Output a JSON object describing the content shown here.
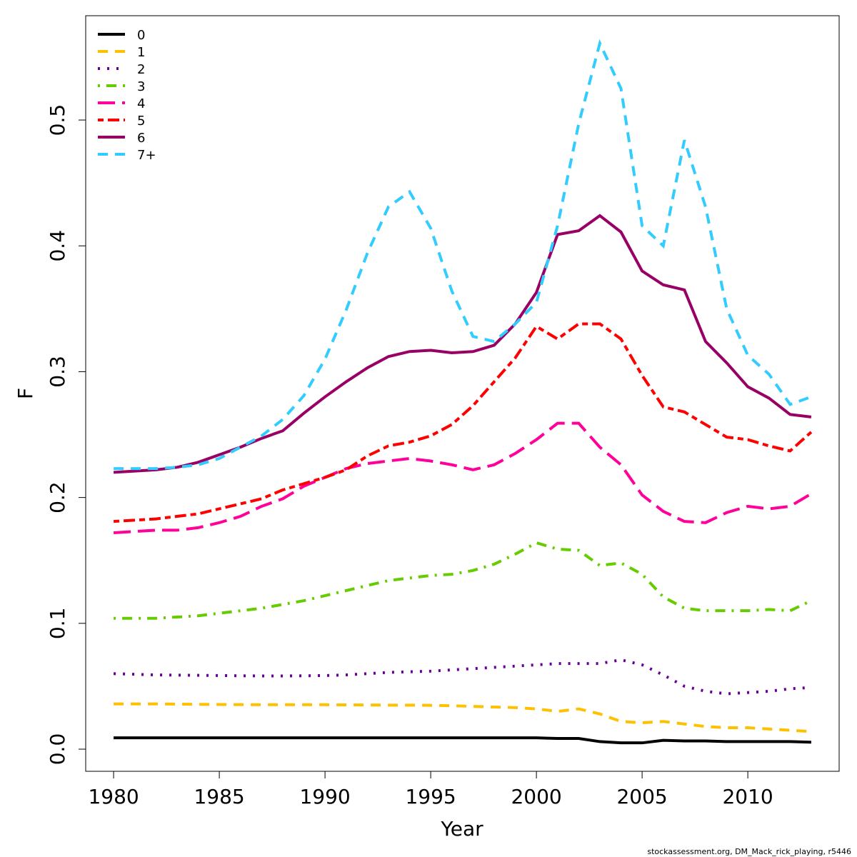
{
  "chart_data": {
    "type": "line",
    "x_label": "Year",
    "y_label": "F",
    "footer": "stockassessment.org, DM_Mack_rick_playing, r5446",
    "x": [
      1980,
      1981,
      1982,
      1983,
      1984,
      1985,
      1986,
      1987,
      1988,
      1989,
      1990,
      1991,
      1992,
      1993,
      1994,
      1995,
      1996,
      1997,
      1998,
      1999,
      2000,
      2001,
      2002,
      2003,
      2004,
      2005,
      2006,
      2007,
      2008,
      2009,
      2010,
      2011,
      2012,
      2013
    ],
    "xlim": [
      1978.68,
      2014.32
    ],
    "xticks": [
      1980,
      1985,
      1990,
      1995,
      2000,
      2005,
      2010
    ],
    "ylim": [
      -0.0176,
      0.5829
    ],
    "yticks": [
      {
        "value": 0,
        "label": "0.0"
      },
      0.1,
      0.2,
      0.3,
      0.4,
      0.5
    ],
    "legend": "top-left",
    "grid": false,
    "series": [
      {
        "name": "0",
        "color": "#000000",
        "dash": "solid",
        "values": [
          0.009,
          0.009,
          0.009,
          0.009,
          0.009,
          0.009,
          0.009,
          0.009,
          0.009,
          0.009,
          0.009,
          0.009,
          0.009,
          0.009,
          0.009,
          0.009,
          0.009,
          0.009,
          0.009,
          0.009,
          0.009,
          0.0085,
          0.0085,
          0.006,
          0.005,
          0.005,
          0.007,
          0.0065,
          0.0065,
          0.006,
          0.006,
          0.006,
          0.006,
          0.0055
        ]
      },
      {
        "name": "1",
        "color": "#FFC000",
        "dash": "dashed",
        "values": [
          0.036,
          0.036,
          0.036,
          0.0358,
          0.0356,
          0.0355,
          0.0354,
          0.0353,
          0.0353,
          0.0353,
          0.0353,
          0.0352,
          0.0351,
          0.035,
          0.035,
          0.0348,
          0.0345,
          0.034,
          0.0335,
          0.033,
          0.032,
          0.03,
          0.032,
          0.028,
          0.022,
          0.021,
          0.022,
          0.02,
          0.018,
          0.017,
          0.017,
          0.016,
          0.015,
          0.014
        ]
      },
      {
        "name": "2",
        "color": "#660099",
        "dash": "dotted",
        "values": [
          0.06,
          0.0595,
          0.059,
          0.0588,
          0.0587,
          0.0585,
          0.0583,
          0.0582,
          0.0582,
          0.0583,
          0.0585,
          0.059,
          0.06,
          0.061,
          0.0615,
          0.062,
          0.063,
          0.064,
          0.065,
          0.066,
          0.067,
          0.068,
          0.068,
          0.068,
          0.071,
          0.067,
          0.059,
          0.05,
          0.046,
          0.044,
          0.045,
          0.046,
          0.048,
          0.049
        ]
      },
      {
        "name": "3",
        "color": "#66CC00",
        "dash": "dotdash",
        "values": [
          0.104,
          0.104,
          0.104,
          0.105,
          0.106,
          0.108,
          0.11,
          0.112,
          0.115,
          0.118,
          0.122,
          0.126,
          0.13,
          0.134,
          0.136,
          0.138,
          0.139,
          0.142,
          0.147,
          0.155,
          0.164,
          0.159,
          0.158,
          0.146,
          0.148,
          0.139,
          0.121,
          0.112,
          0.11,
          0.11,
          0.11,
          0.111,
          0.11,
          0.118
        ]
      },
      {
        "name": "4",
        "color": "#FF0099",
        "dash": "longdash",
        "values": [
          0.172,
          0.173,
          0.174,
          0.174,
          0.176,
          0.18,
          0.185,
          0.193,
          0.199,
          0.209,
          0.216,
          0.223,
          0.227,
          0.229,
          0.231,
          0.229,
          0.226,
          0.222,
          0.226,
          0.235,
          0.246,
          0.259,
          0.259,
          0.24,
          0.226,
          0.202,
          0.189,
          0.181,
          0.18,
          0.188,
          0.193,
          0.191,
          0.193,
          0.203
        ]
      },
      {
        "name": "5",
        "color": "#FF0000",
        "dash": "twodash",
        "values": [
          0.181,
          0.182,
          0.183,
          0.185,
          0.187,
          0.191,
          0.195,
          0.199,
          0.206,
          0.211,
          0.216,
          0.222,
          0.233,
          0.241,
          0.244,
          0.249,
          0.258,
          0.273,
          0.292,
          0.311,
          0.336,
          0.326,
          0.338,
          0.338,
          0.326,
          0.297,
          0.272,
          0.268,
          0.258,
          0.248,
          0.246,
          0.241,
          0.237,
          0.252
        ]
      },
      {
        "name": "6",
        "color": "#990066",
        "dash": "solid",
        "values": [
          0.22,
          0.221,
          0.222,
          0.224,
          0.228,
          0.234,
          0.24,
          0.247,
          0.253,
          0.267,
          0.28,
          0.292,
          0.303,
          0.312,
          0.316,
          0.317,
          0.315,
          0.316,
          0.321,
          0.338,
          0.363,
          0.409,
          0.412,
          0.424,
          0.411,
          0.38,
          0.369,
          0.365,
          0.324,
          0.307,
          0.288,
          0.279,
          0.266,
          0.264
        ]
      },
      {
        "name": "7+",
        "color": "#33CCFF",
        "dash": "dashed",
        "values": [
          0.223,
          0.223,
          0.223,
          0.224,
          0.226,
          0.231,
          0.24,
          0.249,
          0.262,
          0.281,
          0.31,
          0.349,
          0.394,
          0.431,
          0.443,
          0.414,
          0.364,
          0.328,
          0.324,
          0.338,
          0.355,
          0.416,
          0.497,
          0.561,
          0.525,
          0.416,
          0.4,
          0.484,
          0.431,
          0.35,
          0.313,
          0.298,
          0.274,
          0.28
        ]
      }
    ]
  }
}
